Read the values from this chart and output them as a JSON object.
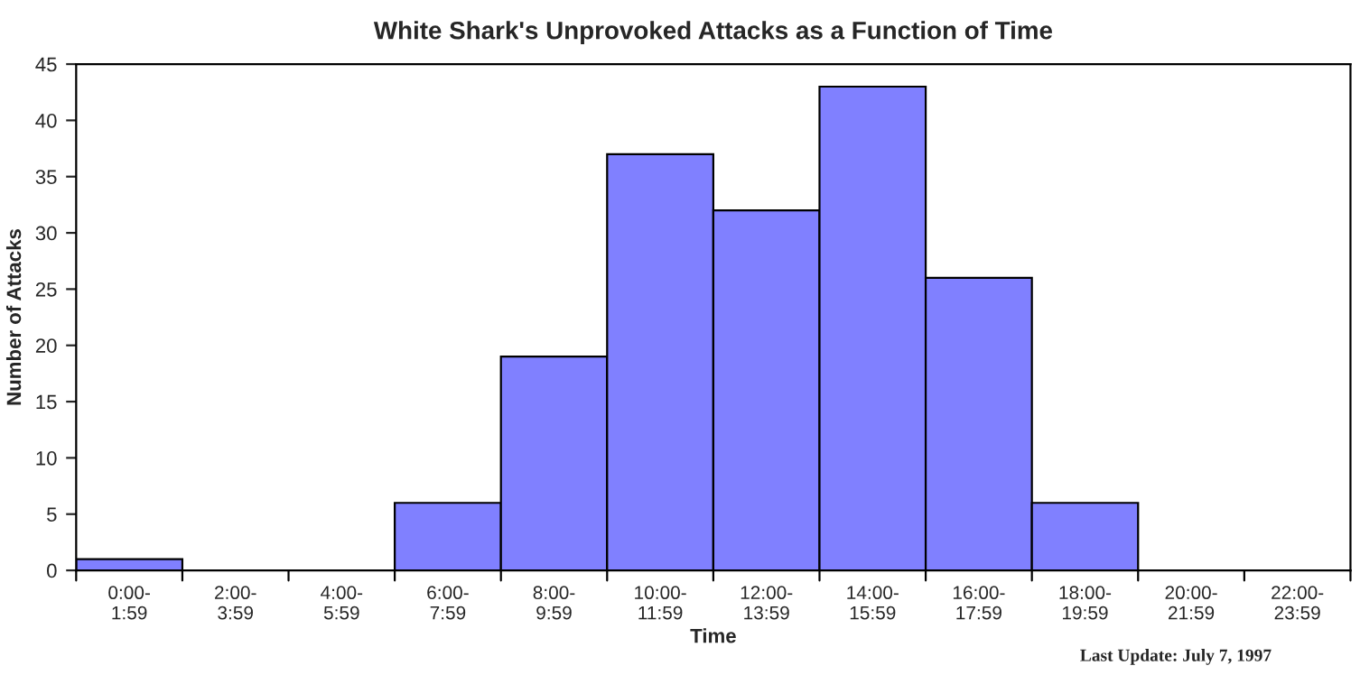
{
  "chart_data": {
    "type": "bar",
    "title": "White Shark's Unprovoked Attacks as a Function of Time",
    "xlabel": "Time",
    "ylabel": "Number of Attacks",
    "categories": [
      "0:00-\n1:59",
      "2:00-\n3:59",
      "4:00-\n5:59",
      "6:00-\n7:59",
      "8:00-\n9:59",
      "10:00-\n11:59",
      "12:00-\n13:59",
      "14:00-\n15:59",
      "16:00-\n17:59",
      "18:00-\n19:59",
      "20:00-\n21:59",
      "22:00-\n23:59"
    ],
    "values": [
      1,
      0,
      0,
      6,
      19,
      37,
      32,
      43,
      26,
      6,
      0,
      0
    ],
    "color": "#8080ff",
    "ylim": [
      0,
      45
    ],
    "yticks": [
      0,
      5,
      10,
      15,
      20,
      25,
      30,
      35,
      40,
      45
    ],
    "grid": false,
    "legend": false,
    "annotations": [
      "Last Update: July 7, 1997"
    ]
  }
}
